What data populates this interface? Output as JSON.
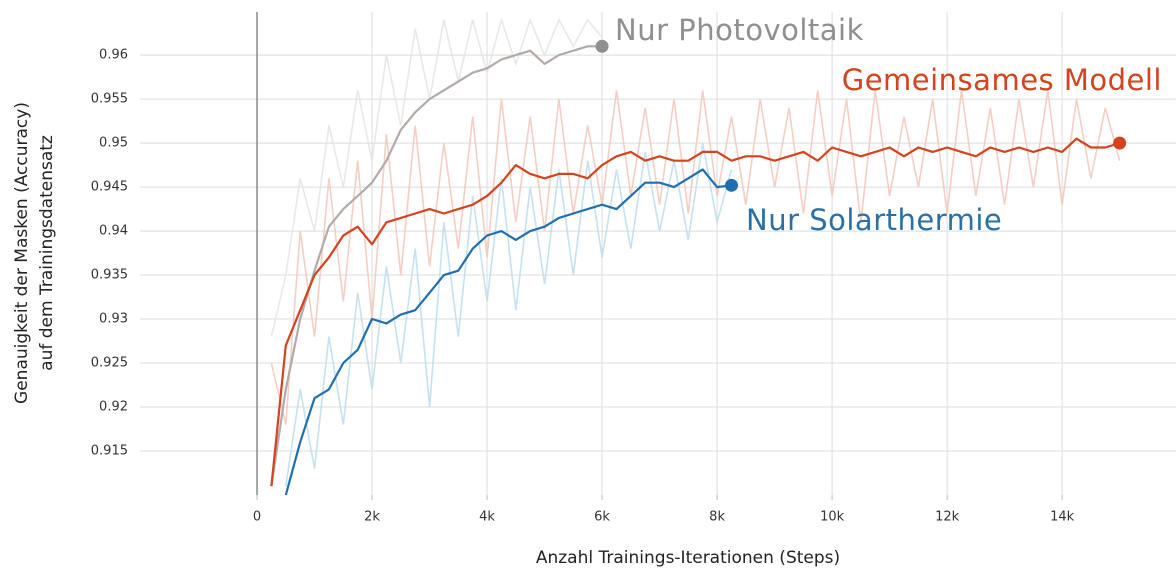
{
  "chart_data": {
    "type": "line",
    "ylabel": [
      "Genauigkeit der Masken (Accuracy)",
      "auf dem Trainingsdatensatz"
    ],
    "xlabel": "Anzahl Trainings-Iterationen (Steps)",
    "xlim": [
      -2035,
      15980
    ],
    "ylim": [
      0.91,
      0.9649
    ],
    "xticks": [
      0,
      {
        "value": 2000,
        "label": "2k"
      },
      {
        "value": 4000,
        "label": "4k"
      },
      {
        "value": 6000,
        "label": "6k"
      },
      {
        "value": 8000,
        "label": "8k"
      },
      {
        "value": 10000,
        "label": "10k"
      },
      {
        "value": 12000,
        "label": "12k"
      },
      {
        "value": 14000,
        "label": "14k"
      }
    ],
    "yticks": [
      0.915,
      0.92,
      0.925,
      0.93,
      0.935,
      0.94,
      0.945,
      0.95,
      0.955,
      0.96
    ],
    "grid": true,
    "series": [
      {
        "name": "Nur Photovoltaik",
        "color": "#8f8f8f",
        "line_color": "#b3aaa8",
        "raw_color": "#e4e4e4",
        "x": [
          250,
          500,
          750,
          1000,
          1250,
          1500,
          1750,
          2000,
          2250,
          2500,
          2750,
          3000,
          3250,
          3500,
          3750,
          4000,
          4250,
          4500,
          4750,
          5000,
          5250,
          5500,
          5750,
          6000
        ],
        "values": [
          0.911,
          0.922,
          0.93,
          0.9355,
          0.9405,
          0.9425,
          0.944,
          0.9455,
          0.948,
          0.9515,
          0.9535,
          0.955,
          0.956,
          0.957,
          0.958,
          0.9585,
          0.9595,
          0.96,
          0.9605,
          0.959,
          0.96,
          0.9605,
          0.961,
          0.961
        ],
        "raw_values": [
          0.928,
          0.935,
          0.946,
          0.94,
          0.952,
          0.945,
          0.956,
          0.948,
          0.96,
          0.952,
          0.963,
          0.955,
          0.964,
          0.957,
          0.964,
          0.958,
          0.964,
          0.959,
          0.964,
          0.96,
          0.964,
          0.961,
          0.964,
          0.962
        ]
      },
      {
        "name": "Gemeinsames Modell",
        "color": "#d2431e",
        "line_color": "#d2431e",
        "raw_color": "#f3c6b9",
        "x": [
          250,
          500,
          750,
          1000,
          1250,
          1500,
          1750,
          2000,
          2250,
          2500,
          2750,
          3000,
          3250,
          3500,
          3750,
          4000,
          4250,
          4500,
          4750,
          5000,
          5250,
          5500,
          5750,
          6000,
          6250,
          6500,
          6750,
          7000,
          7250,
          7500,
          7750,
          8000,
          8250,
          8500,
          8750,
          9000,
          9250,
          9500,
          9750,
          10000,
          10250,
          10500,
          10750,
          11000,
          11250,
          11500,
          11750,
          12000,
          12250,
          12500,
          12750,
          13000,
          13250,
          13500,
          13750,
          14000,
          14250,
          14500,
          14750,
          15000
        ],
        "values": [
          0.911,
          0.927,
          0.931,
          0.935,
          0.937,
          0.9395,
          0.9405,
          0.9385,
          0.941,
          0.9415,
          0.942,
          0.9425,
          0.942,
          0.9425,
          0.943,
          0.944,
          0.9455,
          0.9475,
          0.9465,
          0.946,
          0.9465,
          0.9465,
          0.946,
          0.9475,
          0.9485,
          0.949,
          0.948,
          0.9485,
          0.948,
          0.948,
          0.949,
          0.949,
          0.948,
          0.9485,
          0.9485,
          0.948,
          0.9485,
          0.949,
          0.948,
          0.9495,
          0.949,
          0.9485,
          0.949,
          0.9495,
          0.9485,
          0.9495,
          0.949,
          0.9495,
          0.949,
          0.9485,
          0.9495,
          0.949,
          0.9495,
          0.949,
          0.9495,
          0.949,
          0.9505,
          0.9495,
          0.9495,
          0.95
        ],
        "raw_values": [
          0.925,
          0.918,
          0.94,
          0.928,
          0.946,
          0.932,
          0.948,
          0.93,
          0.951,
          0.935,
          0.952,
          0.936,
          0.95,
          0.938,
          0.953,
          0.937,
          0.955,
          0.941,
          0.953,
          0.94,
          0.955,
          0.942,
          0.952,
          0.943,
          0.956,
          0.944,
          0.954,
          0.943,
          0.955,
          0.942,
          0.956,
          0.944,
          0.953,
          0.943,
          0.955,
          0.945,
          0.954,
          0.942,
          0.956,
          0.944,
          0.955,
          0.941,
          0.956,
          0.944,
          0.953,
          0.945,
          0.955,
          0.942,
          0.956,
          0.944,
          0.954,
          0.943,
          0.955,
          0.945,
          0.956,
          0.943,
          0.955,
          0.946,
          0.954,
          0.948
        ]
      },
      {
        "name": "Nur Solarthermie",
        "color": "#2a70a6",
        "line_color": "#1f6fb0",
        "raw_color": "#bcdcef",
        "x": [
          500,
          750,
          1000,
          1250,
          1500,
          1750,
          2000,
          2250,
          2500,
          2750,
          3000,
          3250,
          3500,
          3750,
          4000,
          4250,
          4500,
          4750,
          5000,
          5250,
          5500,
          5750,
          6000,
          6250,
          6500,
          6750,
          7000,
          7250,
          7500,
          7750,
          8000,
          8250
        ],
        "values": [
          0.91,
          0.916,
          0.921,
          0.922,
          0.925,
          0.9265,
          0.93,
          0.9295,
          0.9305,
          0.931,
          0.933,
          0.935,
          0.9355,
          0.938,
          0.9395,
          0.94,
          0.939,
          0.94,
          0.9405,
          0.9415,
          0.942,
          0.9425,
          0.943,
          0.9425,
          0.944,
          0.9455,
          0.9455,
          0.945,
          0.946,
          0.947,
          0.945,
          0.9452
        ],
        "raw_values": [
          0.911,
          0.922,
          0.913,
          0.928,
          0.918,
          0.933,
          0.922,
          0.936,
          0.925,
          0.938,
          0.92,
          0.941,
          0.928,
          0.944,
          0.932,
          0.946,
          0.931,
          0.945,
          0.934,
          0.947,
          0.935,
          0.948,
          0.937,
          0.947,
          0.938,
          0.949,
          0.94,
          0.948,
          0.939,
          0.95,
          0.941,
          0.947
        ]
      }
    ]
  }
}
